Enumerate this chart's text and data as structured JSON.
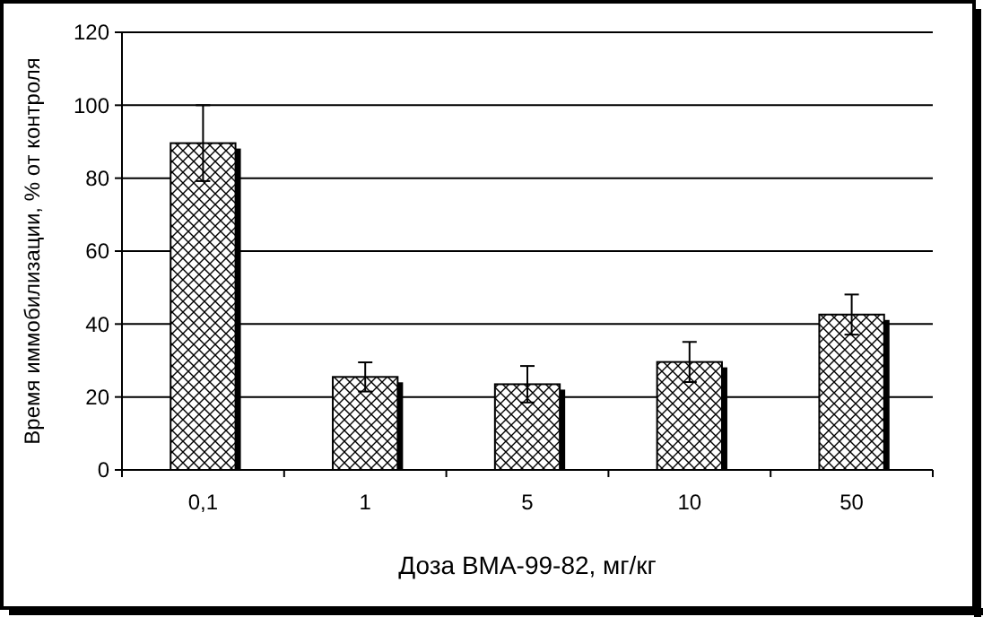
{
  "chart_data": {
    "type": "bar",
    "xlabel": "Доза ВМА-99-82, мг/кг",
    "ylabel": "Время иммобилизации, % от контроля",
    "categories": [
      "0,1",
      "1",
      "5",
      "10",
      "50"
    ],
    "values": [
      89.6,
      25.5,
      23.5,
      29.6,
      42.6
    ],
    "errors": [
      10.4,
      4,
      5,
      5.5,
      5.5
    ],
    "color": "#000000",
    "ylim": [
      0,
      120
    ],
    "yticks": [
      0,
      20,
      40,
      60,
      80,
      100,
      120
    ],
    "grid": "y"
  }
}
